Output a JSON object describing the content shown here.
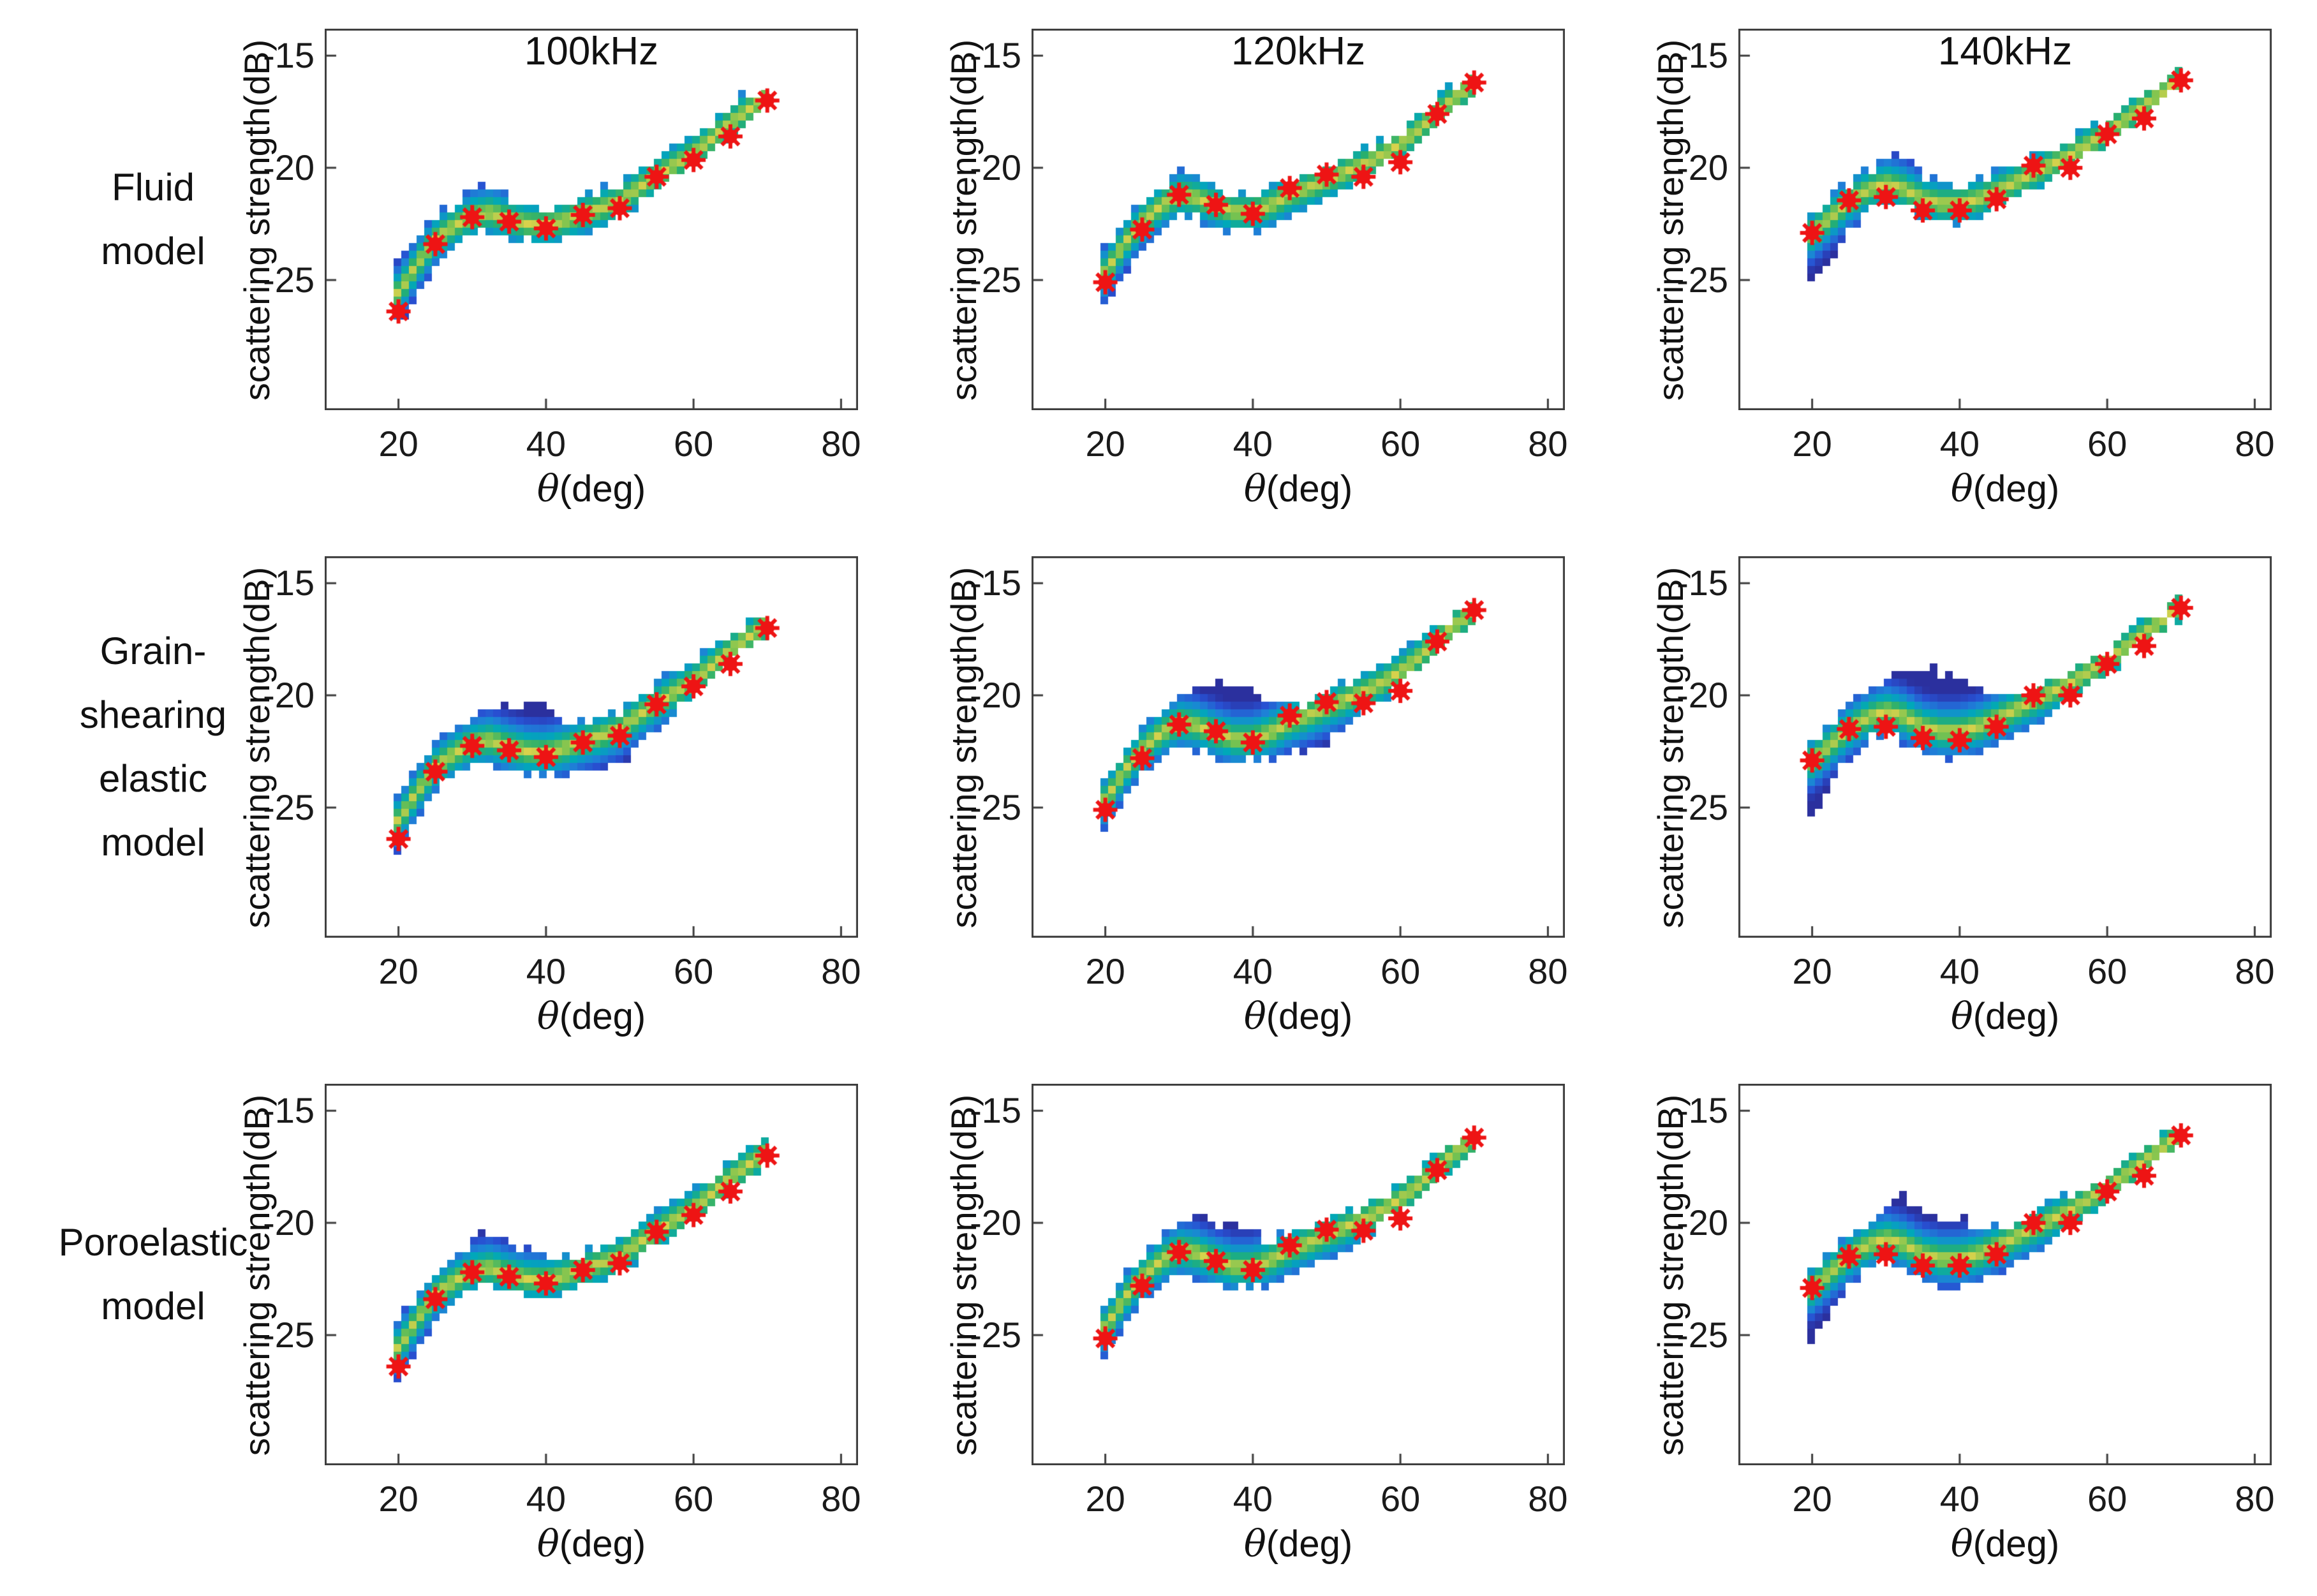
{
  "figure": {
    "background": "#ffffff",
    "frame_color": "#3c3c3c",
    "text_color": "#1a1a1a",
    "marker_color": "#ee1414",
    "band_colormap": [
      [
        0.0,
        "#d8d24c"
      ],
      [
        0.2,
        "#78c350"
      ],
      [
        0.4,
        "#28af6e"
      ],
      [
        0.65,
        "#00a8b9"
      ],
      [
        0.95,
        "#1e82d7"
      ],
      [
        1.3,
        "#2850d2"
      ],
      [
        1.7,
        "#2b309e"
      ]
    ],
    "rows": [
      {
        "id": "fluid",
        "lines": [
          "Fluid",
          "model"
        ]
      },
      {
        "id": "grain-shearing",
        "lines": [
          "Grain-",
          "shearing",
          "elastic",
          "model"
        ]
      },
      {
        "id": "poroelastic",
        "lines": [
          "Poroelastic",
          "model"
        ]
      }
    ],
    "columns": [
      {
        "title": "100kHz"
      },
      {
        "title": "120kHz"
      },
      {
        "title": "140kHz"
      }
    ],
    "axes": {
      "ylabel": "scattering strength(dB)",
      "xlabel_theta": "θ",
      "xlabel_unit": "(deg)",
      "xticks": [
        20,
        40,
        60,
        80
      ],
      "xtick_labels": [
        "20",
        "40",
        "60",
        "80"
      ],
      "yticks": [
        -15,
        -20,
        -25
      ],
      "ytick_labels": [
        "-15",
        "-20",
        "-25"
      ],
      "xlim": [
        10,
        82.3
      ],
      "ylim": [
        -30.8,
        -13.8
      ]
    }
  },
  "chart_data": {
    "type": "heatmap",
    "description": "Density band of modeled scattering strength vs grazing angle with red asterisk measurements",
    "theta_grid": [
      20,
      22.5,
      25,
      27.5,
      30,
      32.5,
      35,
      37.5,
      40,
      42.5,
      45,
      47.5,
      50,
      52.5,
      55,
      57.5,
      60,
      62.5,
      65,
      67.5,
      70
    ],
    "marker_theta": [
      20,
      25,
      30,
      35,
      40,
      45,
      50,
      55,
      60,
      65,
      70
    ],
    "panels": [
      {
        "row_label": "Fluid model",
        "frequency": "100kHz",
        "band": {
          "bottom": [
            -27.0,
            -25.6,
            -24.3,
            -23.5,
            -23.0,
            -22.9,
            -23.1,
            -23.3,
            -23.4,
            -23.2,
            -22.9,
            -22.6,
            -22.2,
            -21.6,
            -21.0,
            -20.5,
            -19.9,
            -19.2,
            -18.5,
            -17.9,
            -17.4
          ],
          "center": [
            -25.6,
            -24.3,
            -23.2,
            -22.6,
            -22.15,
            -22.0,
            -22.3,
            -22.5,
            -22.55,
            -22.35,
            -22.05,
            -21.8,
            -21.5,
            -20.9,
            -20.35,
            -19.85,
            -19.35,
            -18.7,
            -18.0,
            -17.4,
            -16.85
          ],
          "top": [
            -24.4,
            -23.2,
            -22.2,
            -21.6,
            -21.0,
            -20.8,
            -21.4,
            -21.7,
            -21.75,
            -21.6,
            -21.3,
            -21.0,
            -20.7,
            -20.1,
            -19.6,
            -19.0,
            -18.5,
            -17.9,
            -17.3,
            -16.7,
            -16.3
          ]
        },
        "markers": [
          -26.4,
          -23.4,
          -22.2,
          -22.4,
          -22.7,
          -22.1,
          -21.8,
          -20.4,
          -19.65,
          -18.6,
          -17.0
        ]
      },
      {
        "row_label": "Fluid model",
        "frequency": "120kHz",
        "band": {
          "bottom": [
            -26.0,
            -24.7,
            -23.6,
            -22.8,
            -22.1,
            -22.3,
            -22.6,
            -22.8,
            -22.8,
            -22.6,
            -22.2,
            -21.8,
            -21.4,
            -21.0,
            -20.5,
            -20.0,
            -19.5,
            -18.8,
            -18.0,
            -17.3,
            -16.7
          ],
          "center": [
            -24.7,
            -23.4,
            -22.4,
            -21.7,
            -21.2,
            -21.35,
            -21.7,
            -21.95,
            -21.95,
            -21.65,
            -21.2,
            -20.9,
            -20.55,
            -20.2,
            -19.85,
            -19.45,
            -18.95,
            -18.3,
            -17.55,
            -16.85,
            -16.25
          ],
          "top": [
            -23.6,
            -22.5,
            -21.5,
            -20.8,
            -20.25,
            -20.4,
            -20.9,
            -21.2,
            -21.2,
            -20.95,
            -20.55,
            -20.25,
            -19.95,
            -19.6,
            -19.2,
            -18.8,
            -18.3,
            -17.6,
            -16.9,
            -16.3,
            -15.85
          ]
        },
        "markers": [
          -25.1,
          -22.75,
          -21.2,
          -21.65,
          -22.05,
          -20.9,
          -20.3,
          -20.4,
          -19.75,
          -17.6,
          -16.2
        ]
      },
      {
        "row_label": "Fluid model",
        "frequency": "140kHz",
        "band": {
          "bottom": [
            -25.3,
            -24.0,
            -22.9,
            -22.0,
            -21.4,
            -21.8,
            -22.3,
            -22.5,
            -22.5,
            -22.2,
            -21.8,
            -21.4,
            -20.9,
            -20.4,
            -19.9,
            -19.4,
            -18.9,
            -18.3,
            -17.6,
            -17.0,
            -16.5
          ],
          "center": [
            -22.95,
            -22.2,
            -21.5,
            -21.0,
            -20.7,
            -20.95,
            -21.4,
            -21.6,
            -21.6,
            -21.4,
            -21.05,
            -20.65,
            -20.25,
            -19.85,
            -19.45,
            -18.95,
            -18.45,
            -17.85,
            -17.25,
            -16.65,
            -16.05
          ],
          "top": [
            -22.1,
            -21.3,
            -20.6,
            -20.05,
            -19.6,
            -19.7,
            -20.4,
            -20.75,
            -20.8,
            -20.6,
            -20.25,
            -19.9,
            -19.6,
            -19.2,
            -18.8,
            -18.4,
            -17.9,
            -17.3,
            -16.7,
            -16.2,
            -15.7
          ]
        },
        "markers": [
          -22.9,
          -21.45,
          -21.3,
          -21.9,
          -21.9,
          -21.4,
          -19.9,
          -20.0,
          -18.5,
          -17.8,
          -16.1
        ]
      },
      {
        "row_label": "Grain-shearing elastic model",
        "frequency": "100kHz",
        "band": {
          "bottom": [
            -27.0,
            -25.6,
            -24.3,
            -23.5,
            -23.1,
            -23.15,
            -23.35,
            -23.5,
            -23.6,
            -23.6,
            -23.5,
            -23.3,
            -23.0,
            -22.3,
            -21.5,
            -20.8,
            -20.0,
            -19.2,
            -18.5,
            -17.9,
            -17.4
          ],
          "center": [
            -25.6,
            -24.3,
            -23.2,
            -22.6,
            -22.15,
            -22.0,
            -22.3,
            -22.5,
            -22.55,
            -22.35,
            -22.05,
            -21.8,
            -21.5,
            -20.9,
            -20.35,
            -19.85,
            -19.35,
            -18.7,
            -18.0,
            -17.4,
            -16.85
          ],
          "top": [
            -24.4,
            -23.2,
            -22.2,
            -21.6,
            -20.9,
            -20.45,
            -20.35,
            -20.3,
            -20.4,
            -21.35,
            -21.25,
            -21.0,
            -20.65,
            -20.1,
            -19.55,
            -19.0,
            -18.45,
            -17.85,
            -17.25,
            -16.7,
            -16.25
          ]
        },
        "markers": [
          -26.4,
          -23.4,
          -22.25,
          -22.45,
          -22.75,
          -22.1,
          -21.8,
          -20.4,
          -19.6,
          -18.6,
          -17.0
        ]
      },
      {
        "row_label": "Grain-shearing elastic model",
        "frequency": "120kHz",
        "band": {
          "bottom": [
            -26.0,
            -24.7,
            -23.6,
            -22.8,
            -22.2,
            -22.5,
            -22.8,
            -23.0,
            -23.0,
            -22.9,
            -22.7,
            -22.4,
            -22.0,
            -21.5,
            -20.9,
            -20.2,
            -19.6,
            -18.8,
            -18.0,
            -17.3,
            -16.7
          ],
          "center": [
            -24.7,
            -23.4,
            -22.4,
            -21.7,
            -21.2,
            -21.35,
            -21.7,
            -21.95,
            -21.95,
            -21.65,
            -21.2,
            -20.9,
            -20.55,
            -20.2,
            -19.85,
            -19.45,
            -18.95,
            -18.3,
            -17.55,
            -16.85,
            -16.25
          ],
          "top": [
            -23.6,
            -22.5,
            -21.5,
            -20.7,
            -19.9,
            -19.5,
            -19.45,
            -19.45,
            -19.6,
            -20.6,
            -20.5,
            -20.2,
            -19.9,
            -19.55,
            -19.2,
            -18.75,
            -18.25,
            -17.6,
            -16.9,
            -16.3,
            -15.85
          ]
        },
        "markers": [
          -25.1,
          -22.8,
          -21.3,
          -21.6,
          -22.1,
          -20.9,
          -20.3,
          -20.35,
          -19.8,
          -17.6,
          -16.2
        ]
      },
      {
        "row_label": "Grain-shearing elastic model",
        "frequency": "140kHz",
        "band": {
          "bottom": [
            -25.3,
            -24.0,
            -22.9,
            -22.1,
            -21.6,
            -22.1,
            -22.6,
            -22.8,
            -22.8,
            -22.6,
            -22.3,
            -21.9,
            -21.4,
            -20.8,
            -20.2,
            -19.6,
            -19.0,
            -18.3,
            -17.6,
            -17.0,
            -16.5
          ],
          "center": [
            -22.95,
            -22.2,
            -21.5,
            -21.0,
            -20.7,
            -20.95,
            -21.4,
            -21.6,
            -21.6,
            -21.4,
            -21.05,
            -20.65,
            -20.25,
            -19.85,
            -19.45,
            -18.95,
            -18.45,
            -17.85,
            -17.25,
            -16.65,
            -16.05
          ],
          "top": [
            -22.1,
            -21.3,
            -20.5,
            -19.9,
            -19.3,
            -18.85,
            -18.75,
            -18.95,
            -19.3,
            -19.7,
            -19.95,
            -19.9,
            -19.6,
            -19.2,
            -18.8,
            -18.4,
            -17.9,
            -17.3,
            -16.7,
            -16.2,
            -15.7
          ]
        },
        "markers": [
          -22.9,
          -21.5,
          -21.4,
          -21.9,
          -22.0,
          -21.4,
          -20.0,
          -20.0,
          -18.6,
          -17.8,
          -16.1
        ]
      },
      {
        "row_label": "Poroelastic model",
        "frequency": "100kHz",
        "band": {
          "bottom": [
            -27.0,
            -25.6,
            -24.3,
            -23.5,
            -23.0,
            -22.9,
            -23.1,
            -23.3,
            -23.4,
            -23.2,
            -22.9,
            -22.6,
            -22.2,
            -21.6,
            -21.0,
            -20.5,
            -19.9,
            -19.2,
            -18.5,
            -17.9,
            -17.4
          ],
          "center": [
            -25.6,
            -24.3,
            -23.2,
            -22.6,
            -22.15,
            -22.0,
            -22.3,
            -22.5,
            -22.55,
            -22.35,
            -22.05,
            -21.8,
            -21.5,
            -20.9,
            -20.35,
            -19.85,
            -19.35,
            -18.7,
            -18.0,
            -17.4,
            -16.85
          ],
          "top": [
            -24.4,
            -23.2,
            -22.2,
            -21.55,
            -20.85,
            -20.3,
            -21.0,
            -21.2,
            -21.5,
            -21.55,
            -21.3,
            -21.0,
            -20.7,
            -20.1,
            -19.55,
            -19.0,
            -18.5,
            -17.9,
            -17.3,
            -16.7,
            -16.3
          ]
        },
        "markers": [
          -26.4,
          -23.4,
          -22.2,
          -22.4,
          -22.7,
          -22.1,
          -21.8,
          -20.4,
          -19.65,
          -18.6,
          -17.0
        ]
      },
      {
        "row_label": "Poroelastic model",
        "frequency": "120kHz",
        "band": {
          "bottom": [
            -26.0,
            -24.7,
            -23.6,
            -22.8,
            -22.2,
            -22.5,
            -22.8,
            -22.9,
            -22.9,
            -22.7,
            -22.4,
            -22.1,
            -21.7,
            -21.2,
            -20.6,
            -20.0,
            -19.5,
            -18.8,
            -18.0,
            -17.3,
            -16.7
          ],
          "center": [
            -24.7,
            -23.4,
            -22.4,
            -21.7,
            -21.2,
            -21.35,
            -21.7,
            -21.95,
            -21.95,
            -21.65,
            -21.2,
            -20.9,
            -20.55,
            -20.2,
            -19.85,
            -19.45,
            -18.95,
            -18.3,
            -17.55,
            -16.85,
            -16.25
          ],
          "top": [
            -23.6,
            -22.5,
            -21.5,
            -20.75,
            -20.05,
            -19.45,
            -20.0,
            -20.15,
            -20.3,
            -20.8,
            -20.5,
            -20.2,
            -19.9,
            -19.55,
            -19.2,
            -18.75,
            -18.25,
            -17.6,
            -16.9,
            -16.3,
            -15.85
          ]
        },
        "markers": [
          -25.15,
          -22.8,
          -21.3,
          -21.7,
          -22.1,
          -21.0,
          -20.3,
          -20.35,
          -19.8,
          -17.65,
          -16.2
        ]
      },
      {
        "row_label": "Poroelastic model",
        "frequency": "140kHz",
        "band": {
          "bottom": [
            -25.3,
            -24.0,
            -22.9,
            -22.1,
            -21.6,
            -22.1,
            -22.6,
            -22.8,
            -22.8,
            -22.6,
            -22.3,
            -21.9,
            -21.4,
            -20.8,
            -20.2,
            -19.6,
            -19.0,
            -18.3,
            -17.6,
            -17.0,
            -16.5
          ],
          "center": [
            -22.95,
            -22.2,
            -21.5,
            -21.0,
            -20.7,
            -20.95,
            -21.4,
            -21.6,
            -21.6,
            -21.4,
            -21.05,
            -20.65,
            -20.25,
            -19.85,
            -19.45,
            -18.95,
            -18.45,
            -17.85,
            -17.25,
            -16.65,
            -16.05
          ],
          "top": [
            -22.1,
            -21.3,
            -20.5,
            -19.95,
            -19.4,
            -18.65,
            -19.5,
            -19.75,
            -19.8,
            -20.3,
            -20.15,
            -19.9,
            -19.6,
            -19.2,
            -18.8,
            -18.4,
            -17.9,
            -17.3,
            -16.7,
            -16.2,
            -15.7
          ]
        },
        "markers": [
          -22.9,
          -21.5,
          -21.4,
          -21.9,
          -21.9,
          -21.4,
          -20.0,
          -20.0,
          -18.6,
          -17.9,
          -16.1
        ]
      }
    ]
  }
}
